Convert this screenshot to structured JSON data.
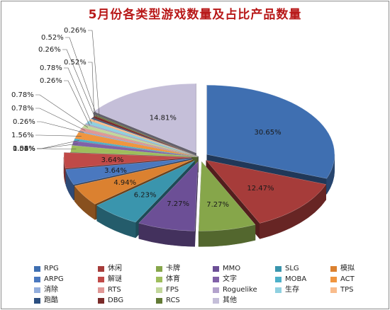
{
  "chart_data": {
    "type": "pie",
    "title": "5月份各类型游戏数量及占比产品数量",
    "legend_position": "bottom",
    "slices": [
      {
        "label": "RPG",
        "value": 30.65,
        "data_label": "30.65%",
        "color": "#3f6fb1"
      },
      {
        "label": "休闲",
        "value": 12.47,
        "data_label": "12.47%",
        "color": "#a63c3a"
      },
      {
        "label": "卡牌",
        "value": 7.27,
        "data_label": "7.27%",
        "color": "#86a64a"
      },
      {
        "label": "MMO",
        "value": 7.27,
        "data_label": "7.27%",
        "color": "#6c4f96"
      },
      {
        "label": "SLG",
        "value": 6.23,
        "data_label": "6.23%",
        "color": "#3a95ad"
      },
      {
        "label": "模拟",
        "value": 4.94,
        "data_label": "4.94%",
        "color": "#db8130"
      },
      {
        "label": "ARPG",
        "value": 3.64,
        "data_label": "3.64%",
        "color": "#4a78bf"
      },
      {
        "label": "解谜",
        "value": 3.64,
        "data_label": "3.64%",
        "color": "#c04a48"
      },
      {
        "label": "体育",
        "value": 1.56,
        "data_label": "1.56%",
        "color": "#9ebd5c"
      },
      {
        "label": "文字",
        "value": 1.04,
        "data_label": "1.04%",
        "color": "#8161a8"
      },
      {
        "label": "MOBA",
        "value": 0.52,
        "data_label": "0.52%",
        "color": "#4cb0c9"
      },
      {
        "label": "ACT",
        "value": 1.56,
        "data_label": "1.56%",
        "color": "#f0953f"
      },
      {
        "label": "消除",
        "value": 0.26,
        "data_label": "0.26%",
        "color": "#93aedd"
      },
      {
        "label": "RTS",
        "value": 0.78,
        "data_label": "0.78%",
        "color": "#e09896"
      },
      {
        "label": "FPS",
        "value": 0.78,
        "data_label": "0.78%",
        "color": "#c2d79b"
      },
      {
        "label": "Roguelike",
        "value": 0.26,
        "data_label": "0.26%",
        "color": "#b3a2cc"
      },
      {
        "label": "生存",
        "value": 0.78,
        "data_label": "0.78%",
        "color": "#8fd0e0"
      },
      {
        "label": "TPS",
        "value": 0.52,
        "data_label": "0.52%",
        "color": "#f9bc8c"
      },
      {
        "label": "跑酷",
        "value": 0.26,
        "data_label": "0.26%",
        "color": "#2c4f80"
      },
      {
        "label": "DBG",
        "value": 0.52,
        "data_label": "0.52%",
        "color": "#7a2b29"
      },
      {
        "label": "RCS",
        "value": 0.26,
        "data_label": "0.26%",
        "color": "#627a35"
      },
      {
        "label": "其他",
        "value": 14.81,
        "data_label": "14.81%",
        "color": "#c5bfd9"
      }
    ]
  }
}
